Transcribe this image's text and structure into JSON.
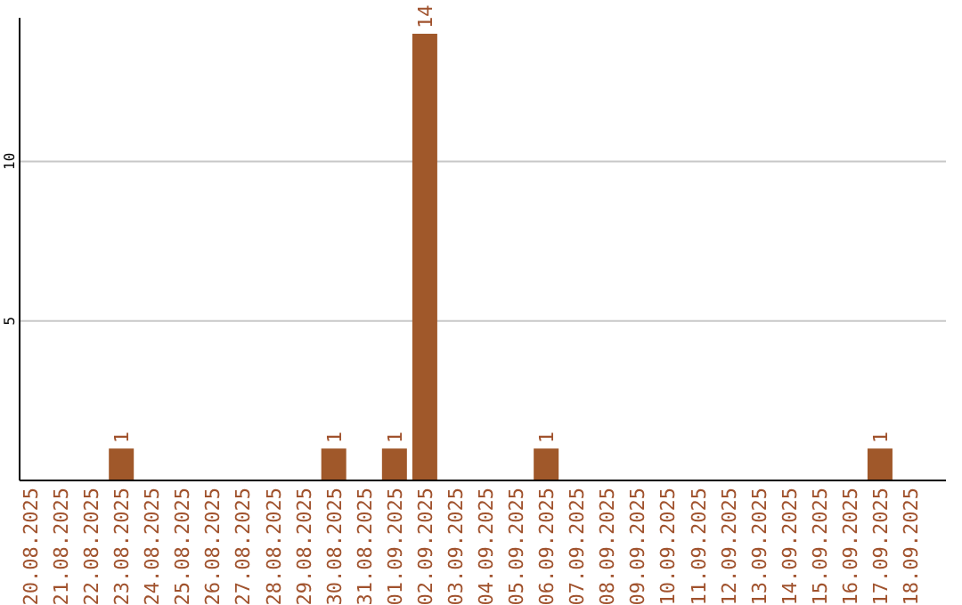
{
  "chart_data": {
    "type": "bar",
    "categories": [
      "20.08.2025",
      "21.08.2025",
      "22.08.2025",
      "23.08.2025",
      "24.08.2025",
      "25.08.2025",
      "26.08.2025",
      "27.08.2025",
      "28.08.2025",
      "29.08.2025",
      "30.08.2025",
      "31.08.2025",
      "01.09.2025",
      "02.09.2025",
      "03.09.2025",
      "04.09.2025",
      "05.09.2025",
      "06.09.2025",
      "07.09.2025",
      "08.09.2025",
      "09.09.2025",
      "10.09.2025",
      "11.09.2025",
      "12.09.2025",
      "13.09.2025",
      "14.09.2025",
      "15.09.2025",
      "16.09.2025",
      "17.09.2025",
      "18.09.2025"
    ],
    "values": [
      0,
      0,
      0,
      1,
      0,
      0,
      0,
      0,
      0,
      0,
      1,
      0,
      1,
      14,
      0,
      0,
      0,
      1,
      0,
      0,
      0,
      0,
      0,
      0,
      0,
      0,
      0,
      0,
      1,
      0
    ],
    "value_labels": [
      null,
      null,
      null,
      "1",
      null,
      null,
      null,
      null,
      null,
      null,
      "1",
      null,
      "1",
      "14",
      null,
      null,
      null,
      "1",
      null,
      null,
      null,
      null,
      null,
      null,
      null,
      null,
      null,
      null,
      "1",
      null
    ],
    "color": "#a0582a",
    "ylim": [
      0,
      14.5
    ],
    "yticks": [
      5,
      10
    ],
    "grid": "y"
  }
}
